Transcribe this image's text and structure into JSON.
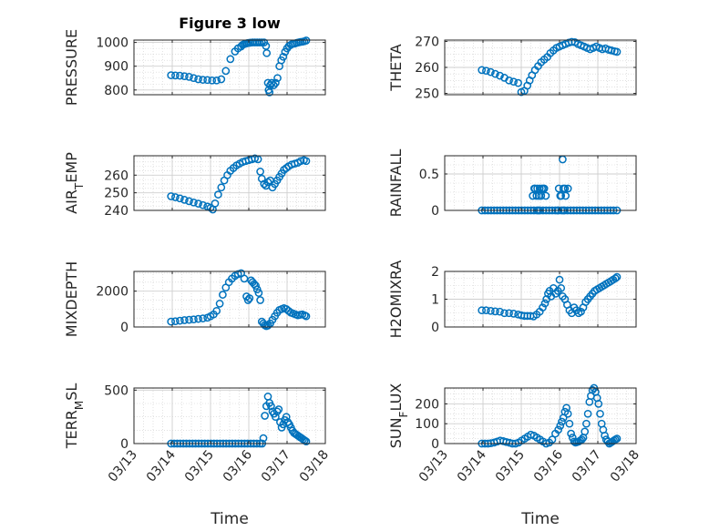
{
  "colors": {
    "marker": "#0072BD",
    "axis": "#262626",
    "grid": "#cfcfcf"
  },
  "chart_data": [
    {
      "type": "scatter",
      "title": "Figure 3 low",
      "ylabel": "PRESSURE",
      "xlabel": "",
      "ylim": [
        780,
        1010
      ],
      "yticks": [
        800,
        900,
        1000
      ],
      "grid": true,
      "x_ticklabels": [
        "03/13",
        "03/14",
        "03/15",
        "03/16",
        "03/17",
        "03/18"
      ],
      "series": [
        {
          "x_days": [
            0.97,
            1.08,
            1.2,
            1.32,
            1.44,
            1.56,
            1.68,
            1.8,
            1.92,
            2.04,
            2.16,
            2.28,
            2.4,
            2.52,
            2.64,
            2.72,
            2.8,
            2.84,
            2.88,
            2.92,
            2.96,
            3.0,
            3.04,
            3.1,
            3.16,
            3.22,
            3.28,
            3.34,
            3.4,
            3.45,
            3.47,
            3.5,
            3.52,
            3.54,
            3.56,
            3.6,
            3.65,
            3.7,
            3.75,
            3.8,
            3.85,
            3.9,
            3.95,
            4.0,
            4.05,
            4.1,
            4.15,
            4.2,
            4.25,
            4.3,
            4.35,
            4.4,
            4.45,
            4.5
          ],
          "y": [
            862,
            861,
            860,
            858,
            855,
            850,
            845,
            843,
            842,
            840,
            840,
            845,
            880,
            930,
            962,
            975,
            983,
            990,
            993,
            995,
            997,
            998,
            999,
            1000,
            1000,
            1000,
            1000,
            1000,
            1000,
            985,
            955,
            830,
            800,
            790,
            820,
            830,
            820,
            830,
            850,
            900,
            925,
            940,
            960,
            975,
            985,
            990,
            995,
            995,
            998,
            1000,
            1002,
            1003,
            1005,
            1008
          ]
        }
      ]
    },
    {
      "type": "scatter",
      "title": "",
      "ylabel": "THETA",
      "xlabel": "",
      "ylim": [
        249.5,
        270.5
      ],
      "yticks": [
        250,
        260,
        270
      ],
      "grid": true,
      "x_ticklabels": [
        "03/13",
        "03/14",
        "03/15",
        "03/16",
        "03/17",
        "03/18"
      ],
      "series": [
        {
          "x_days": [
            0.97,
            1.08,
            1.2,
            1.32,
            1.44,
            1.56,
            1.68,
            1.8,
            1.92,
            2.0,
            2.08,
            2.16,
            2.22,
            2.28,
            2.36,
            2.44,
            2.52,
            2.6,
            2.68,
            2.76,
            2.84,
            2.92,
            3.0,
            3.08,
            3.16,
            3.24,
            3.32,
            3.4,
            3.48,
            3.56,
            3.64,
            3.72,
            3.8,
            3.88,
            3.96,
            4.04,
            4.12,
            4.2,
            4.28,
            4.36,
            4.44,
            4.5
          ],
          "y": [
            259,
            258.7,
            258.2,
            257.5,
            256.8,
            256,
            255,
            254.5,
            254,
            250.5,
            251,
            253,
            255,
            257,
            259,
            260.5,
            262,
            263,
            264,
            265.5,
            266.5,
            267.5,
            268,
            268.5,
            269,
            269.5,
            269.8,
            269.7,
            269,
            268.5,
            268,
            267.5,
            267,
            267.5,
            268,
            267.5,
            267,
            267.3,
            266.8,
            266.5,
            266.2,
            266
          ]
        }
      ]
    },
    {
      "type": "scatter",
      "title": "",
      "ylabel": "AIR_TEMP",
      "xlabel": "",
      "ylim": [
        240,
        271
      ],
      "yticks": [
        240,
        250,
        260
      ],
      "grid": true,
      "x_ticklabels": [
        "03/13",
        "03/14",
        "03/15",
        "03/16",
        "03/17",
        "03/18"
      ],
      "series": [
        {
          "x_days": [
            0.97,
            1.08,
            1.2,
            1.32,
            1.44,
            1.56,
            1.68,
            1.8,
            1.92,
            2.0,
            2.06,
            2.12,
            2.2,
            2.28,
            2.36,
            2.44,
            2.52,
            2.6,
            2.68,
            2.76,
            2.84,
            2.92,
            3.0,
            3.08,
            3.16,
            3.24,
            3.3,
            3.34,
            3.4,
            3.45,
            3.5,
            3.56,
            3.62,
            3.68,
            3.74,
            3.8,
            3.86,
            3.92,
            3.98,
            4.04,
            4.12,
            4.2,
            4.28,
            4.36,
            4.44,
            4.5
          ],
          "y": [
            248,
            247.5,
            246.8,
            246,
            245.2,
            244.5,
            243.8,
            243,
            242.2,
            241.5,
            240.5,
            244,
            249,
            253,
            257,
            260,
            262.5,
            264,
            265.5,
            266.5,
            267.5,
            268,
            268.5,
            269,
            269.5,
            269,
            262,
            258,
            255,
            254,
            256,
            257,
            253,
            255,
            257,
            259,
            261,
            263,
            264,
            265,
            266,
            266.5,
            267,
            268,
            268.5,
            268
          ]
        }
      ]
    },
    {
      "type": "scatter",
      "title": "",
      "ylabel": "RAINFALL",
      "xlabel": "",
      "ylim": [
        0,
        0.75
      ],
      "yticks": [
        0,
        0.5
      ],
      "grid": true,
      "x_ticklabels": [
        "03/13",
        "03/14",
        "03/15",
        "03/16",
        "03/17",
        "03/18"
      ],
      "series": [
        {
          "x_days": [
            0.97,
            1.05,
            1.13,
            1.21,
            1.29,
            1.37,
            1.45,
            1.53,
            1.61,
            1.69,
            1.77,
            1.85,
            1.93,
            2.01,
            2.09,
            2.17,
            2.25,
            2.33,
            2.41,
            2.49,
            2.57,
            2.65,
            2.73,
            2.81,
            2.89,
            2.97,
            3.05,
            3.13,
            3.21,
            3.29,
            3.37,
            3.45,
            3.53,
            3.61,
            3.69,
            3.77,
            3.85,
            3.93,
            4.01,
            4.09,
            4.17,
            4.25,
            4.33,
            4.41,
            4.5,
            2.3,
            2.36,
            2.42,
            2.48,
            2.54,
            2.6,
            2.34,
            2.4,
            2.46,
            2.52,
            2.58,
            2.64,
            2.98,
            3.04,
            3.1,
            3.16,
            3.22,
            3.08,
            3.14,
            3.02,
            2.45,
            2.95,
            3.1
          ],
          "y": [
            0,
            0,
            0,
            0,
            0,
            0,
            0,
            0,
            0,
            0,
            0,
            0,
            0,
            0,
            0,
            0,
            0,
            0,
            0,
            0,
            0,
            0,
            0,
            0,
            0,
            0,
            0,
            0,
            0,
            0,
            0,
            0,
            0,
            0,
            0,
            0,
            0,
            0,
            0,
            0,
            0,
            0,
            0,
            0,
            0,
            0.2,
            0.3,
            0.3,
            0.3,
            0.3,
            0.3,
            0.3,
            0.2,
            0.2,
            0.2,
            0.3,
            0.2,
            0.3,
            0.2,
            0.3,
            0.2,
            0.3,
            0.7,
            0.3,
            0.2,
            0,
            0,
            0
          ]
        }
      ]
    },
    {
      "type": "scatter",
      "title": "",
      "ylabel": "MIXDEPTH",
      "xlabel": "",
      "ylim": [
        0,
        3100
      ],
      "yticks": [
        0,
        2000
      ],
      "grid": true,
      "x_ticklabels": [
        "03/13",
        "03/14",
        "03/15",
        "03/16",
        "03/17",
        "03/18"
      ],
      "series": [
        {
          "x_days": [
            0.97,
            1.08,
            1.2,
            1.32,
            1.44,
            1.56,
            1.68,
            1.8,
            1.92,
            2.0,
            2.08,
            2.16,
            2.24,
            2.32,
            2.4,
            2.48,
            2.56,
            2.64,
            2.72,
            2.8,
            2.88,
            2.94,
            2.98,
            3.02,
            3.06,
            3.1,
            3.14,
            3.18,
            3.22,
            3.26,
            3.3,
            3.34,
            3.38,
            3.42,
            3.46,
            3.5,
            3.56,
            3.62,
            3.68,
            3.74,
            3.8,
            3.86,
            3.92,
            3.98,
            4.04,
            4.1,
            4.16,
            4.22,
            4.28,
            4.34,
            4.4,
            4.46,
            4.5
          ],
          "y": [
            300,
            320,
            350,
            380,
            400,
            420,
            450,
            480,
            520,
            600,
            700,
            900,
            1300,
            1800,
            2200,
            2500,
            2700,
            2850,
            2950,
            3000,
            2700,
            1700,
            1500,
            1600,
            2600,
            2500,
            2400,
            2300,
            2100,
            1900,
            1500,
            300,
            200,
            100,
            50,
            80,
            200,
            400,
            600,
            800,
            950,
            1000,
            1050,
            1000,
            900,
            800,
            750,
            700,
            650,
            680,
            700,
            650,
            600
          ]
        }
      ]
    },
    {
      "type": "scatter",
      "title": "",
      "ylabel": "H2OMIXRA",
      "xlabel": "",
      "ylim": [
        0,
        2
      ],
      "yticks": [
        0,
        1,
        2
      ],
      "grid": true,
      "x_ticklabels": [
        "03/13",
        "03/14",
        "03/15",
        "03/16",
        "03/17",
        "03/18"
      ],
      "series": [
        {
          "x_days": [
            0.97,
            1.08,
            1.2,
            1.32,
            1.44,
            1.56,
            1.68,
            1.8,
            1.92,
            2.0,
            2.08,
            2.16,
            2.24,
            2.32,
            2.4,
            2.48,
            2.56,
            2.62,
            2.66,
            2.7,
            2.74,
            2.78,
            2.84,
            2.9,
            2.96,
            3.0,
            3.04,
            3.08,
            3.14,
            3.2,
            3.26,
            3.32,
            3.38,
            3.44,
            3.5,
            3.56,
            3.62,
            3.68,
            3.74,
            3.8,
            3.86,
            3.92,
            3.98,
            4.04,
            4.1,
            4.16,
            4.22,
            4.28,
            4.34,
            4.4,
            4.46,
            4.5
          ],
          "y": [
            0.6,
            0.6,
            0.58,
            0.56,
            0.55,
            0.5,
            0.5,
            0.48,
            0.45,
            0.42,
            0.4,
            0.4,
            0.4,
            0.38,
            0.45,
            0.55,
            0.7,
            0.85,
            1.0,
            1.2,
            1.3,
            1.1,
            1.4,
            1.2,
            1.3,
            1.7,
            1.4,
            1.1,
            1.0,
            0.8,
            0.6,
            0.5,
            0.7,
            0.6,
            0.5,
            0.55,
            0.7,
            0.9,
            1.0,
            1.1,
            1.2,
            1.3,
            1.35,
            1.4,
            1.45,
            1.5,
            1.55,
            1.6,
            1.65,
            1.7,
            1.75,
            1.8
          ]
        }
      ]
    },
    {
      "type": "scatter",
      "title": "",
      "ylabel": "TERR_MSL",
      "xlabel": "Time",
      "ylim": [
        0,
        520
      ],
      "yticks": [
        0,
        500
      ],
      "grid": true,
      "x_ticklabels": [
        "03/13",
        "03/14",
        "03/15",
        "03/16",
        "03/17",
        "03/18"
      ],
      "series": [
        {
          "x_days": [
            0.97,
            1.05,
            1.13,
            1.21,
            1.29,
            1.37,
            1.45,
            1.53,
            1.61,
            1.69,
            1.77,
            1.85,
            1.93,
            2.01,
            2.09,
            2.17,
            2.25,
            2.33,
            2.41,
            2.49,
            2.57,
            2.65,
            2.73,
            2.81,
            2.89,
            2.97,
            3.05,
            3.13,
            3.21,
            3.29,
            3.35,
            3.38,
            3.42,
            3.46,
            3.5,
            3.54,
            3.58,
            3.62,
            3.66,
            3.7,
            3.74,
            3.78,
            3.82,
            3.86,
            3.9,
            3.94,
            3.98,
            4.02,
            4.06,
            4.1,
            4.14,
            4.18,
            4.22,
            4.26,
            4.3,
            4.34,
            4.38,
            4.42,
            4.46,
            4.5
          ],
          "y": [
            0,
            0,
            0,
            0,
            0,
            0,
            0,
            0,
            0,
            0,
            0,
            0,
            0,
            0,
            0,
            0,
            0,
            0,
            0,
            0,
            0,
            0,
            0,
            0,
            0,
            0,
            0,
            0,
            0,
            0,
            0,
            50,
            260,
            350,
            440,
            380,
            350,
            300,
            280,
            250,
            300,
            320,
            200,
            150,
            180,
            220,
            250,
            200,
            180,
            150,
            120,
            100,
            90,
            80,
            70,
            60,
            50,
            40,
            30,
            20
          ]
        }
      ]
    },
    {
      "type": "scatter",
      "title": "",
      "ylabel": "SUN_FLUX",
      "xlabel": "Time",
      "ylim": [
        0,
        280
      ],
      "yticks": [
        0,
        100,
        200
      ],
      "grid": true,
      "x_ticklabels": [
        "03/13",
        "03/14",
        "03/15",
        "03/16",
        "03/17",
        "03/18"
      ],
      "series": [
        {
          "x_days": [
            0.97,
            1.05,
            1.13,
            1.21,
            1.29,
            1.37,
            1.45,
            1.53,
            1.61,
            1.69,
            1.77,
            1.85,
            1.93,
            2.01,
            2.09,
            2.17,
            2.25,
            2.33,
            2.41,
            2.49,
            2.57,
            2.65,
            2.73,
            2.81,
            2.89,
            2.97,
            3.02,
            3.06,
            3.1,
            3.14,
            3.18,
            3.22,
            3.26,
            3.3,
            3.34,
            3.38,
            3.42,
            3.46,
            3.5,
            3.54,
            3.58,
            3.62,
            3.66,
            3.7,
            3.74,
            3.78,
            3.82,
            3.86,
            3.9,
            3.94,
            3.98,
            4.02,
            4.06,
            4.1,
            4.14,
            4.18,
            4.22,
            4.26,
            4.3,
            4.34,
            4.38,
            4.42,
            4.46,
            4.5
          ],
          "y": [
            0,
            0,
            0,
            2,
            5,
            10,
            15,
            12,
            8,
            4,
            0,
            0,
            5,
            15,
            25,
            35,
            45,
            40,
            30,
            20,
            10,
            0,
            5,
            20,
            50,
            70,
            90,
            110,
            130,
            160,
            180,
            150,
            100,
            50,
            30,
            10,
            5,
            8,
            10,
            15,
            20,
            30,
            60,
            100,
            150,
            210,
            240,
            270,
            280,
            260,
            230,
            200,
            150,
            100,
            70,
            40,
            20,
            10,
            0,
            5,
            10,
            15,
            20,
            25
          ]
        }
      ]
    }
  ]
}
